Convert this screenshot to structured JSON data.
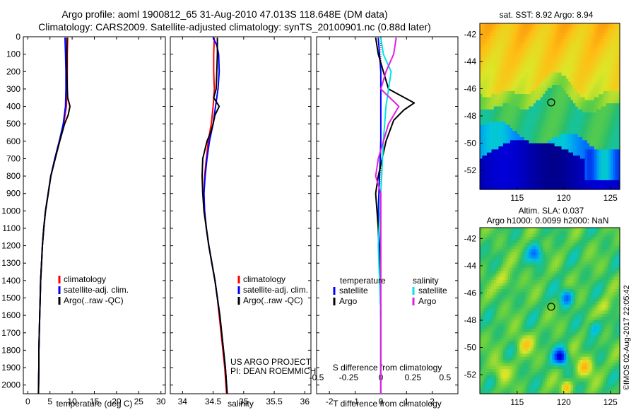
{
  "header": {
    "title": "Argo profile: aoml 1900812_65 31-Aug-2010 47.013S 118.648E (DM data)",
    "subtitle": "Climatology: CARS2009. Satellite-adjusted climatology: synTS_20100901.nc (0.88d later)"
  },
  "colors": {
    "climatology": "#ff0000",
    "satellite": "#0000ff",
    "argo": "#000000",
    "salinity_satellite": "#00e5e5",
    "salinity_argo": "#e020e0"
  },
  "depth_axis": {
    "ylim": [
      0,
      2050
    ],
    "ticks": [
      0,
      100,
      200,
      300,
      400,
      500,
      600,
      700,
      800,
      900,
      1000,
      1100,
      1200,
      1300,
      1400,
      1500,
      1600,
      1700,
      1800,
      1900,
      2000
    ]
  },
  "chart_data": [
    {
      "type": "line",
      "xlabel": "temperature (deg C)",
      "xlim": [
        -1,
        31
      ],
      "xticks": [
        0,
        5,
        10,
        15,
        20,
        25,
        30
      ],
      "legend": {
        "placement": "bottom-center",
        "entries": [
          "climatology",
          "satellite-adj. clim.",
          "Argo(..raw -QC)"
        ]
      },
      "series": [
        {
          "name": "climatology",
          "color": "#ff0000",
          "points": [
            [
              9.0,
              5
            ],
            [
              8.9,
              100
            ],
            [
              8.9,
              200
            ],
            [
              8.9,
              300
            ],
            [
              8.7,
              400
            ],
            [
              8.1,
              500
            ],
            [
              7.1,
              600
            ],
            [
              6.1,
              700
            ],
            [
              5.2,
              800
            ],
            [
              4.6,
              900
            ],
            [
              4.0,
              1000
            ],
            [
              3.6,
              1100
            ],
            [
              3.3,
              1200
            ],
            [
              3.1,
              1300
            ],
            [
              2.9,
              1400
            ],
            [
              2.8,
              1500
            ],
            [
              2.7,
              1600
            ],
            [
              2.6,
              1700
            ],
            [
              2.5,
              1800
            ],
            [
              2.5,
              1900
            ],
            [
              2.4,
              2050
            ]
          ]
        },
        {
          "name": "satellite-adj. clim.",
          "color": "#0000ff",
          "points": [
            [
              8.4,
              5
            ],
            [
              8.5,
              100
            ],
            [
              8.6,
              200
            ],
            [
              8.6,
              300
            ],
            [
              8.5,
              400
            ],
            [
              8.0,
              500
            ],
            [
              7.1,
              600
            ],
            [
              6.1,
              700
            ],
            [
              5.2,
              800
            ],
            [
              4.6,
              900
            ],
            [
              4.0,
              1000
            ],
            [
              3.6,
              1100
            ],
            [
              3.3,
              1200
            ],
            [
              3.1,
              1300
            ],
            [
              2.9,
              1400
            ],
            [
              2.8,
              1500
            ],
            [
              2.7,
              1600
            ],
            [
              2.6,
              1700
            ],
            [
              2.5,
              1800
            ],
            [
              2.5,
              1900
            ],
            [
              2.4,
              2050
            ]
          ]
        },
        {
          "name": "Argo(..raw -QC)",
          "color": "#000000",
          "points": [
            [
              8.8,
              5
            ],
            [
              8.8,
              100
            ],
            [
              8.8,
              200
            ],
            [
              8.9,
              300
            ],
            [
              9.0,
              350
            ],
            [
              9.5,
              400
            ],
            [
              9.1,
              450
            ],
            [
              8.3,
              500
            ],
            [
              7.2,
              600
            ],
            [
              6.2,
              700
            ],
            [
              5.2,
              800
            ],
            [
              4.6,
              900
            ],
            [
              4.0,
              1000
            ],
            [
              3.6,
              1100
            ],
            [
              3.3,
              1200
            ],
            [
              3.1,
              1300
            ],
            [
              2.9,
              1400
            ],
            [
              2.8,
              1500
            ],
            [
              2.7,
              1600
            ],
            [
              2.6,
              1700
            ],
            [
              2.5,
              1800
            ],
            [
              2.5,
              1900
            ],
            [
              2.4,
              2050
            ]
          ]
        }
      ]
    },
    {
      "type": "line",
      "xlabel": "salinity",
      "xlim": [
        33.8,
        36.1
      ],
      "xticks": [
        34,
        34.5,
        35,
        35.5,
        36
      ],
      "legend": {
        "placement": "bottom-right",
        "entries": [
          "climatology",
          "satellite-adj. clim.",
          "Argo(..raw -QC)"
        ]
      },
      "annotations": [
        "US ARGO PROJECT",
        "PI: DEAN ROEMMICH"
      ],
      "series": [
        {
          "name": "climatology",
          "color": "#ff0000",
          "points": [
            [
              34.52,
              5
            ],
            [
              34.51,
              100
            ],
            [
              34.51,
              200
            ],
            [
              34.52,
              300
            ],
            [
              34.5,
              400
            ],
            [
              34.47,
              500
            ],
            [
              34.42,
              600
            ],
            [
              34.39,
              700
            ],
            [
              34.36,
              800
            ],
            [
              34.35,
              900
            ],
            [
              34.36,
              1000
            ],
            [
              34.39,
              1100
            ],
            [
              34.43,
              1200
            ],
            [
              34.48,
              1300
            ],
            [
              34.53,
              1400
            ],
            [
              34.57,
              1500
            ],
            [
              34.6,
              1600
            ],
            [
              34.63,
              1700
            ],
            [
              34.66,
              1800
            ],
            [
              34.69,
              1900
            ],
            [
              34.72,
              2050
            ]
          ]
        },
        {
          "name": "satellite-adj. clim.",
          "color": "#0000ff",
          "points": [
            [
              34.5,
              5
            ],
            [
              34.56,
              50
            ],
            [
              34.59,
              100
            ],
            [
              34.6,
              200
            ],
            [
              34.58,
              300
            ],
            [
              34.54,
              400
            ],
            [
              34.5,
              500
            ],
            [
              34.44,
              600
            ],
            [
              34.4,
              700
            ],
            [
              34.37,
              800
            ],
            [
              34.35,
              900
            ],
            [
              34.36,
              1000
            ],
            [
              34.39,
              1100
            ],
            [
              34.43,
              1200
            ],
            [
              34.48,
              1300
            ],
            [
              34.53,
              1400
            ],
            [
              34.57,
              1500
            ],
            [
              34.61,
              1600
            ],
            [
              34.64,
              1700
            ],
            [
              34.67,
              1800
            ],
            [
              34.7,
              1900
            ],
            [
              34.73,
              2050
            ]
          ]
        },
        {
          "name": "Argo(..raw -QC)",
          "color": "#000000",
          "points": [
            [
              34.57,
              5
            ],
            [
              34.57,
              100
            ],
            [
              34.56,
              200
            ],
            [
              34.55,
              300
            ],
            [
              34.51,
              350
            ],
            [
              34.6,
              400
            ],
            [
              34.53,
              450
            ],
            [
              34.5,
              500
            ],
            [
              34.46,
              550
            ],
            [
              34.4,
              600
            ],
            [
              34.33,
              700
            ],
            [
              34.32,
              800
            ],
            [
              34.33,
              900
            ],
            [
              34.35,
              1000
            ],
            [
              34.39,
              1100
            ],
            [
              34.43,
              1200
            ],
            [
              34.48,
              1300
            ],
            [
              34.53,
              1400
            ],
            [
              34.57,
              1500
            ],
            [
              34.61,
              1600
            ],
            [
              34.64,
              1700
            ],
            [
              34.67,
              1800
            ],
            [
              34.7,
              1900
            ],
            [
              34.73,
              2050
            ]
          ]
        }
      ]
    },
    {
      "type": "line",
      "xlabel": "T difference from climatology",
      "x2label": "S difference from climatology",
      "xlim": [
        -2.5,
        3.0
      ],
      "xticks": [
        -2,
        -1,
        0,
        1,
        2
      ],
      "xticklabels": [
        "-2",
        "-1",
        "0",
        "1",
        "2"
      ],
      "x2ticks": [
        -0.5,
        -0.25,
        0,
        0.25,
        0.5
      ],
      "x2ticklabels": [
        "-0.5",
        "-0.25",
        "0",
        "0.25",
        "0.5"
      ],
      "x2_scale": 5,
      "legend": {
        "placement": "bottom",
        "groups": [
          {
            "title": "temperature",
            "entries": [
              "satellite",
              "Argo"
            ]
          },
          {
            "title": "salinity",
            "entries": [
              "satellite",
              "Argo"
            ]
          }
        ]
      },
      "series": [
        {
          "name": "satellite",
          "group": "temperature",
          "color": "#0000ff",
          "points": [
            [
              -0.1,
              5
            ],
            [
              0,
              200
            ],
            [
              0,
              600
            ],
            [
              -0.05,
              800
            ],
            [
              -0.1,
              1000
            ],
            [
              -0.05,
              1200
            ],
            [
              0,
              1600
            ],
            [
              0,
              2050
            ]
          ]
        },
        {
          "name": "Argo",
          "group": "temperature",
          "color": "#000000",
          "points": [
            [
              -0.2,
              5
            ],
            [
              -0.1,
              100
            ],
            [
              0.1,
              200
            ],
            [
              0.3,
              300
            ],
            [
              1.3,
              380
            ],
            [
              0.9,
              420
            ],
            [
              0.5,
              480
            ],
            [
              0.2,
              600
            ],
            [
              -0.1,
              800
            ],
            [
              -0.2,
              900
            ],
            [
              -0.1,
              1100
            ],
            [
              0,
              1600
            ],
            [
              0,
              2050
            ]
          ]
        },
        {
          "name": "satellite",
          "group": "salinity",
          "color": "#00e5e5",
          "points": [
            [
              0,
              5
            ],
            [
              0.1,
              100
            ],
            [
              0.4,
              200
            ],
            [
              0.2,
              400
            ],
            [
              0.1,
              600
            ],
            [
              0,
              900
            ],
            [
              -0.1,
              1200
            ],
            [
              0,
              1600
            ],
            [
              0,
              2050
            ]
          ]
        },
        {
          "name": "Argo",
          "group": "salinity",
          "color": "#e020e0",
          "points": [
            [
              0.6,
              5
            ],
            [
              0.5,
              100
            ],
            [
              0.2,
              200
            ],
            [
              0,
              300
            ],
            [
              0.7,
              400
            ],
            [
              0.3,
              500
            ],
            [
              -0.1,
              700
            ],
            [
              -0.2,
              800
            ],
            [
              0,
              900
            ],
            [
              0,
              2050
            ]
          ]
        }
      ]
    }
  ],
  "maps": [
    {
      "title": "sat. SST: 8.92 Argo: 8.94",
      "type": "heatmap",
      "xticks": [
        115,
        120,
        125
      ],
      "yticks": [
        -42,
        -44,
        -46,
        -48,
        -50,
        -52
      ],
      "xlim": [
        111,
        126
      ],
      "ylim": [
        -53.4,
        -41.2
      ],
      "marker": [
        118.65,
        -47.01
      ]
    },
    {
      "title_line1": "Altim. SLA: 0.037",
      "title_line2": "Argo h1000: 0.0099 h2000: NaN",
      "type": "heatmap",
      "xticks": [
        115,
        120,
        125
      ],
      "yticks": [
        -42,
        -44,
        -46,
        -48,
        -50,
        -52
      ],
      "xlim": [
        111,
        126
      ],
      "ylim": [
        -53.4,
        -41.2
      ],
      "marker": [
        118.65,
        -47.01
      ]
    }
  ],
  "footer": {
    "stamp": "©IMOS 02-Aug-2017 22:05:42"
  }
}
